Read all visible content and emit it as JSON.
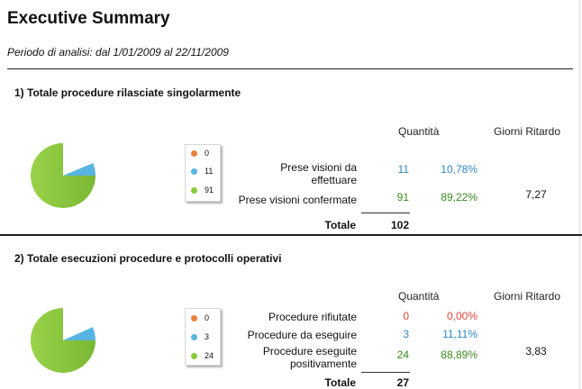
{
  "report": {
    "title": "Executive Summary",
    "period": "Periodo di analisi: dal 1/01/2009 al 22/11/2009"
  },
  "colors": {
    "orange": "#e8823a",
    "blue": "#58b4e0",
    "green": "#8cc83c",
    "green_text": "#3a8a1c",
    "red_text": "#d9473b",
    "blue_text": "#2f86c8"
  },
  "section1": {
    "title": "1) Totale procedure rilasciate singolarmente",
    "col_quantity": "Quantità",
    "col_delay": "Giorni Ritardo",
    "legend": [
      {
        "value": "0",
        "color": "orange"
      },
      {
        "value": "11",
        "color": "blue"
      },
      {
        "value": "91",
        "color": "green"
      }
    ],
    "rows": [
      {
        "label_line1": "Prese visioni da",
        "label_line2": "effettuare",
        "qty": "11",
        "pct": "10,78%",
        "days": ""
      },
      {
        "label_line1": "Prese visioni confermate",
        "label_line2": "",
        "qty": "91",
        "pct": "89,22%",
        "days": "7,27"
      }
    ],
    "total_label": "Totale",
    "total_value": "102"
  },
  "section2": {
    "title": "2) Totale esecuzioni procedure e protocolli operativi",
    "col_quantity": "Quantità",
    "col_delay": "Giorni Ritardo",
    "legend": [
      {
        "value": "0",
        "color": "orange"
      },
      {
        "value": "3",
        "color": "blue"
      },
      {
        "value": "24",
        "color": "green"
      }
    ],
    "rows": [
      {
        "label_line1": "Procedure rifiutate",
        "label_line2": "",
        "qty": "0",
        "pct": "0,00%",
        "days": ""
      },
      {
        "label_line1": "Procedure da eseguire",
        "label_line2": "",
        "qty": "3",
        "pct": "11,11%",
        "days": ""
      },
      {
        "label_line1": "Procedure eseguite",
        "label_line2": "positivamente",
        "qty": "24",
        "pct": "88,89%",
        "days": "3,83"
      }
    ],
    "total_label": "Totale",
    "total_value": "27"
  }
}
